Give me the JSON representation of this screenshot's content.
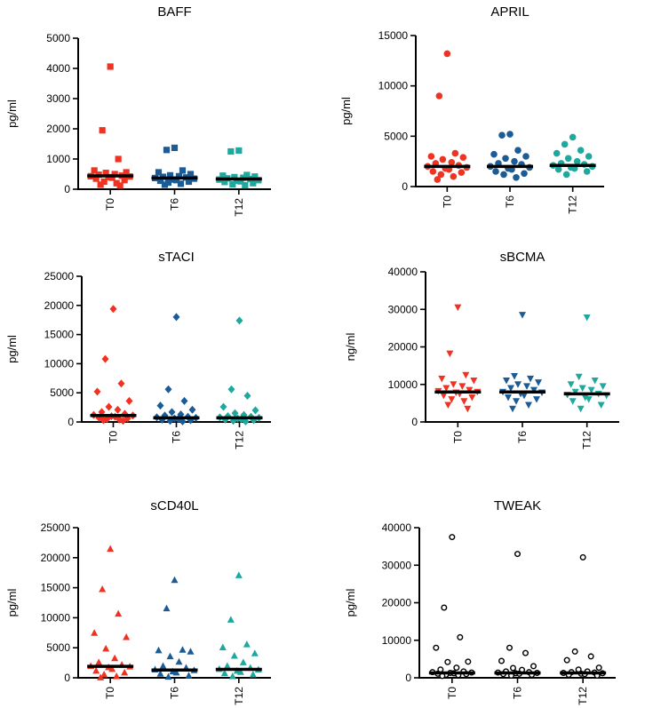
{
  "chart_data": [
    {
      "id": "baff",
      "type": "scatter",
      "title": "BAFF",
      "ylabel": "pg/ml",
      "ylim": [
        0,
        5000
      ],
      "yticks": [
        0,
        1000,
        2000,
        3000,
        4000,
        5000
      ],
      "ytick_labels": [
        "0",
        "1000",
        "2000",
        "3000",
        "4000",
        "5000"
      ],
      "categories": [
        "T0",
        "T6",
        "T12"
      ],
      "marker": "square",
      "colors": [
        "#f03223",
        "#1b5c96",
        "#1ea89e"
      ],
      "filled": true,
      "series": [
        {
          "name": "T0",
          "median": 440,
          "values": [
            4060,
            1950,
            1000,
            620,
            560,
            540,
            500,
            480,
            450,
            430,
            420,
            400,
            380,
            350,
            300,
            250,
            200,
            150,
            120
          ]
        },
        {
          "name": "T6",
          "median": 370,
          "values": [
            1370,
            1300,
            620,
            560,
            500,
            460,
            430,
            410,
            390,
            370,
            350,
            320,
            300,
            280,
            250,
            220,
            180,
            150
          ]
        },
        {
          "name": "T12",
          "median": 340,
          "values": [
            1280,
            1250,
            470,
            450,
            420,
            400,
            380,
            360,
            340,
            320,
            300,
            280,
            260,
            240,
            200,
            160,
            130
          ]
        }
      ]
    },
    {
      "id": "april",
      "type": "scatter",
      "title": "APRIL",
      "ylabel": "pg/ml",
      "ylim": [
        0,
        15000
      ],
      "yticks": [
        0,
        5000,
        10000,
        15000
      ],
      "ytick_labels": [
        "0",
        "5000",
        "10000",
        "15000"
      ],
      "categories": [
        "T0",
        "T6",
        "T12"
      ],
      "marker": "circle",
      "colors": [
        "#f03223",
        "#1b5c96",
        "#1ea89e"
      ],
      "filled": true,
      "series": [
        {
          "name": "T0",
          "median": 2000,
          "values": [
            13200,
            9000,
            3300,
            3000,
            2900,
            2700,
            2400,
            2300,
            2100,
            2000,
            1900,
            1800,
            1700,
            1500,
            1400,
            1200,
            1000,
            700
          ]
        },
        {
          "name": "T6",
          "median": 2000,
          "values": [
            5200,
            5100,
            3600,
            3200,
            3000,
            2800,
            2500,
            2300,
            2200,
            2000,
            1900,
            1800,
            1700,
            1500,
            1300,
            1200,
            900
          ]
        },
        {
          "name": "T12",
          "median": 2100,
          "values": [
            4900,
            4200,
            3600,
            3300,
            3000,
            2800,
            2500,
            2300,
            2200,
            2100,
            2000,
            1900,
            1800,
            1700,
            1500,
            1200
          ]
        }
      ]
    },
    {
      "id": "stacl",
      "type": "scatter",
      "title": "sTACI",
      "ylabel": "pg/ml",
      "ylim": [
        0,
        25000
      ],
      "yticks": [
        0,
        5000,
        10000,
        15000,
        20000,
        25000
      ],
      "ytick_labels": [
        "0",
        "5000",
        "10000",
        "15000",
        "20000",
        "25000"
      ],
      "categories": [
        "T0",
        "T6",
        "T12"
      ],
      "marker": "diamond",
      "colors": [
        "#f03223",
        "#1b5c96",
        "#1ea89e"
      ],
      "filled": true,
      "series": [
        {
          "name": "T0",
          "median": 1100,
          "values": [
            19400,
            10800,
            6600,
            5200,
            3600,
            2600,
            2100,
            1700,
            1400,
            1200,
            1100,
            1000,
            900,
            700,
            600,
            500,
            400,
            300,
            200
          ]
        },
        {
          "name": "T6",
          "median": 700,
          "values": [
            18000,
            5600,
            3600,
            2800,
            2100,
            1700,
            1300,
            1100,
            900,
            800,
            700,
            600,
            500,
            400,
            300,
            200,
            100
          ]
        },
        {
          "name": "T12",
          "median": 700,
          "values": [
            17400,
            5600,
            4500,
            2600,
            2000,
            1500,
            1200,
            1000,
            900,
            800,
            700,
            600,
            500,
            400,
            300,
            200,
            100
          ]
        }
      ]
    },
    {
      "id": "sbcma",
      "type": "scatter",
      "title": "sBCMA",
      "ylabel": "ng/ml",
      "ylim": [
        0,
        40000
      ],
      "yticks": [
        0,
        10000,
        20000,
        30000,
        40000
      ],
      "ytick_labels": [
        "0",
        "10000",
        "20000",
        "30000",
        "40000"
      ],
      "categories": [
        "T0",
        "T6",
        "T12"
      ],
      "marker": "triangle-down",
      "colors": [
        "#f03223",
        "#1b5c96",
        "#1ea89e"
      ],
      "filled": true,
      "series": [
        {
          "name": "T0",
          "median": 8000,
          "values": [
            30500,
            18200,
            12500,
            11500,
            11000,
            10000,
            9500,
            9000,
            8500,
            8200,
            8000,
            7800,
            7500,
            7000,
            6500,
            6000,
            5500,
            4500,
            3500
          ]
        },
        {
          "name": "T6",
          "median": 8000,
          "values": [
            28500,
            12200,
            11500,
            11000,
            10500,
            10000,
            9500,
            9000,
            8500,
            8000,
            7800,
            7500,
            7000,
            6500,
            6000,
            5500,
            4500,
            3500
          ]
        },
        {
          "name": "T12",
          "median": 7500,
          "values": [
            27800,
            12000,
            11000,
            10000,
            9500,
            9000,
            8500,
            8000,
            7500,
            7200,
            7000,
            6500,
            6000,
            5500,
            4500,
            3500
          ]
        }
      ]
    },
    {
      "id": "scd40l",
      "type": "scatter",
      "title": "sCD40L",
      "ylabel": "pg/ml",
      "ylim": [
        0,
        25000
      ],
      "yticks": [
        0,
        5000,
        10000,
        15000,
        20000,
        25000
      ],
      "ytick_labels": [
        "0",
        "5000",
        "10000",
        "15000",
        "20000",
        "25000"
      ],
      "categories": [
        "T0",
        "T6",
        "T12"
      ],
      "marker": "triangle-up",
      "colors": [
        "#f03223",
        "#1b5c96",
        "#1ea89e"
      ],
      "filled": true,
      "series": [
        {
          "name": "T0",
          "median": 1900,
          "values": [
            21500,
            14800,
            10700,
            7500,
            6800,
            4900,
            3300,
            2600,
            2200,
            2000,
            1900,
            1800,
            1500,
            1200,
            900,
            600,
            300,
            100
          ]
        },
        {
          "name": "T6",
          "median": 1300,
          "values": [
            16300,
            11600,
            4700,
            4600,
            4400,
            3600,
            2700,
            2000,
            1700,
            1400,
            1300,
            1100,
            900,
            700,
            400,
            200
          ]
        },
        {
          "name": "T12",
          "median": 1400,
          "values": [
            17100,
            9700,
            5600,
            5100,
            4100,
            3700,
            2600,
            2000,
            1700,
            1500,
            1400,
            1200,
            1000,
            800,
            600,
            300
          ]
        }
      ]
    },
    {
      "id": "tweak",
      "type": "scatter",
      "title": "TWEAK",
      "ylabel": "pg/ml",
      "ylim": [
        0,
        40000
      ],
      "yticks": [
        0,
        10000,
        20000,
        30000,
        40000
      ],
      "ytick_labels": [
        "0",
        "10000",
        "20000",
        "30000",
        "40000"
      ],
      "categories": [
        "T0",
        "T6",
        "T12"
      ],
      "marker": "circle",
      "colors": [
        "#000000",
        "#000000",
        "#000000"
      ],
      "filled": false,
      "series": [
        {
          "name": "T0",
          "median": 1300,
          "values": [
            37500,
            18700,
            10800,
            8000,
            4300,
            4200,
            2700,
            2200,
            1700,
            1500,
            1400,
            1300,
            1200,
            1100,
            1000,
            800,
            700,
            500
          ]
        },
        {
          "name": "T6",
          "median": 1300,
          "values": [
            33000,
            8000,
            6600,
            4500,
            3100,
            2600,
            2100,
            1700,
            1500,
            1400,
            1300,
            1200,
            1100,
            1000,
            800,
            600
          ]
        },
        {
          "name": "T12",
          "median": 1300,
          "values": [
            32100,
            7000,
            5700,
            4700,
            2700,
            2200,
            1700,
            1500,
            1400,
            1300,
            1200,
            1100,
            1000,
            800,
            600
          ]
        }
      ]
    }
  ]
}
